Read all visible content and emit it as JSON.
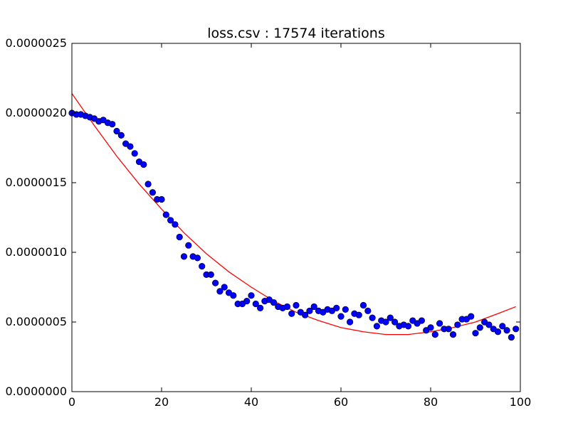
{
  "chart_data": {
    "type": "scatter",
    "title": "loss.csv : 17574 iterations",
    "xlabel": "",
    "ylabel": "",
    "xlim": [
      0,
      100
    ],
    "ylim": [
      0,
      2.5e-06
    ],
    "x_ticks": [
      0,
      20,
      40,
      60,
      80,
      100
    ],
    "x_tick_labels": [
      "0",
      "20",
      "40",
      "60",
      "80",
      "100"
    ],
    "y_ticks": [
      0,
      5e-07,
      1e-06,
      1.5e-06,
      2e-06,
      2.5e-06
    ],
    "y_tick_labels": [
      "0.0000000",
      "0.0000005",
      "0.0000010",
      "0.0000015",
      "0.0000020",
      "0.0000025"
    ],
    "grid": false,
    "series": [
      {
        "kind": "points",
        "color": "#0000ff",
        "x": [
          0,
          1,
          2,
          3,
          4,
          5,
          6,
          7,
          8,
          9,
          10,
          11,
          12,
          13,
          14,
          15,
          16,
          17,
          18,
          19,
          20,
          21,
          22,
          23,
          24,
          25,
          26,
          27,
          28,
          29,
          30,
          31,
          32,
          33,
          34,
          35,
          36,
          37,
          38,
          39,
          40,
          41,
          42,
          43,
          44,
          45,
          46,
          47,
          48,
          49,
          50,
          51,
          52,
          53,
          54,
          55,
          56,
          57,
          58,
          59,
          60,
          61,
          62,
          63,
          64,
          65,
          66,
          67,
          68,
          69,
          70,
          71,
          72,
          73,
          74,
          75,
          76,
          77,
          78,
          79,
          80,
          81,
          82,
          83,
          84,
          85,
          86,
          87,
          88,
          89,
          90,
          91,
          92,
          93,
          94,
          95,
          96,
          97,
          98,
          99
        ],
        "y": [
          2e-06,
          1.99e-06,
          1.99e-06,
          1.98e-06,
          1.97e-06,
          1.96e-06,
          1.94e-06,
          1.95e-06,
          1.93e-06,
          1.92e-06,
          1.87e-06,
          1.84e-06,
          1.78e-06,
          1.76e-06,
          1.71e-06,
          1.65e-06,
          1.63e-06,
          1.49e-06,
          1.43e-06,
          1.38e-06,
          1.38e-06,
          1.27e-06,
          1.23e-06,
          1.2e-06,
          1.11e-06,
          9.7e-07,
          1.05e-06,
          9.7e-07,
          9.6e-07,
          9e-07,
          8.4e-07,
          8.4e-07,
          7.8e-07,
          7.2e-07,
          7.5e-07,
          7.1e-07,
          6.9e-07,
          6.3e-07,
          6.3e-07,
          6.5e-07,
          6.9e-07,
          6.3e-07,
          6e-07,
          6.5e-07,
          6.6e-07,
          6.4e-07,
          6.1e-07,
          6e-07,
          6.1e-07,
          5.6e-07,
          6.2e-07,
          5.7e-07,
          5.5e-07,
          5.8e-07,
          6.1e-07,
          5.8e-07,
          5.7e-07,
          5.9e-07,
          5.8e-07,
          6e-07,
          5.4e-07,
          5.9e-07,
          5e-07,
          5.6e-07,
          5.5e-07,
          6.2e-07,
          5.8e-07,
          5.3e-07,
          4.7e-07,
          5.1e-07,
          5e-07,
          5.3e-07,
          5e-07,
          4.7e-07,
          4.8e-07,
          4.7e-07,
          5.1e-07,
          4.9e-07,
          5.1e-07,
          4.4e-07,
          4.6e-07,
          4.1e-07,
          4.9e-07,
          4.5e-07,
          4.5e-07,
          4.1e-07,
          4.8e-07,
          5.2e-07,
          5.2e-07,
          5.4e-07,
          4.2e-07,
          4.6e-07,
          5e-07,
          4.8e-07,
          4.5e-07,
          4.3e-07,
          4.7e-07,
          4.4e-07,
          3.9e-07,
          4.5e-07
        ]
      },
      {
        "kind": "fit-line",
        "color": "#ff0000",
        "x": [
          0,
          5,
          10,
          15,
          20,
          25,
          30,
          35,
          40,
          45,
          50,
          55,
          60,
          65,
          70,
          75,
          80,
          85,
          90,
          95,
          99
        ],
        "y": [
          2.14e-06,
          1.91e-06,
          1.69e-06,
          1.49e-06,
          1.31e-06,
          1.14e-06,
          9.9e-07,
          8.6e-07,
          7.5e-07,
          6.5e-07,
          5.7e-07,
          5.1e-07,
          4.6e-07,
          4.3e-07,
          4.1e-07,
          4.1e-07,
          4.3e-07,
          4.6e-07,
          5e-07,
          5.6e-07,
          6.1e-07
        ]
      }
    ]
  }
}
